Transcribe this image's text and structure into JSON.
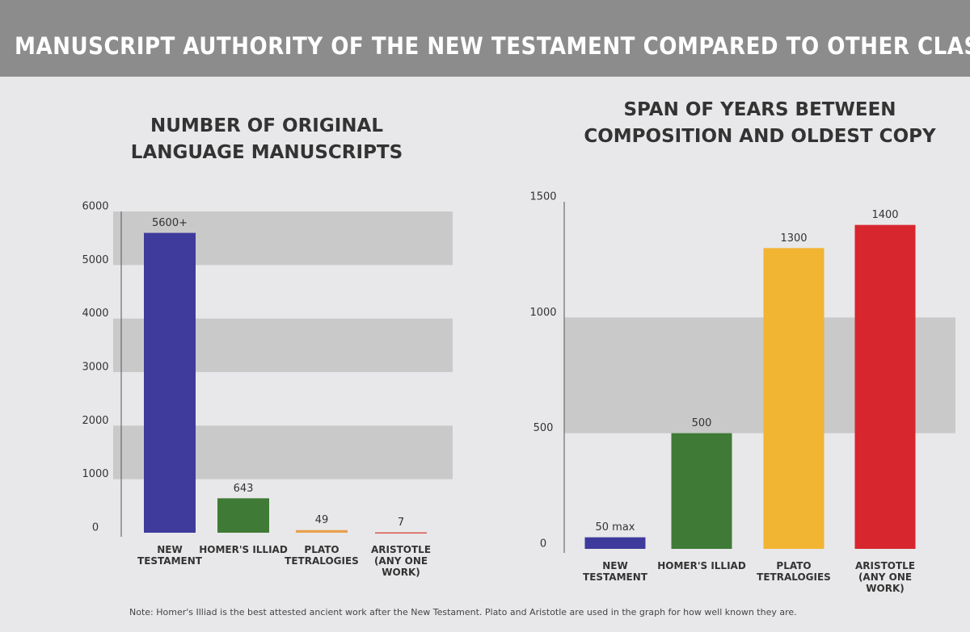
{
  "header": {
    "title": "MANUSCRIPT AUTHORITY OF THE NEW TESTAMENT COMPARED TO OTHER CLASSICAL WORK"
  },
  "chart_data": [
    {
      "type": "bar",
      "title": "NUMBER OF ORIGINAL LANGUAGE MANUSCRIPTS",
      "categories": [
        "NEW TESTAMENT",
        "HOMER'S ILLIAD",
        "PLATO TETRALOGIES",
        "ARISTOTLE (ANY ONE WORK)"
      ],
      "values": [
        5600,
        643,
        49,
        7
      ],
      "value_labels": [
        "5600+",
        "643",
        "49",
        "7"
      ],
      "colors": [
        "#3e3b9c",
        "#3f7b36",
        "#e9a04c",
        "#d9564c"
      ],
      "ylim": [
        0,
        6000
      ],
      "yticks": [
        0,
        1000,
        2000,
        3000,
        4000,
        5000,
        6000
      ],
      "grid": "bands"
    },
    {
      "type": "bar",
      "title": "SPAN OF YEARS BETWEEN COMPOSITION AND OLDEST COPY",
      "categories": [
        "NEW TESTAMENT",
        "HOMER'S ILLIAD",
        "PLATO TETRALOGIES",
        "ARISTOTLE (ANY ONE WORK)"
      ],
      "values": [
        50,
        500,
        1300,
        1400
      ],
      "value_labels": [
        "50 max",
        "500",
        "1300",
        "1400"
      ],
      "colors": [
        "#3e3b9c",
        "#3f7b36",
        "#f1b433",
        "#d8262e"
      ],
      "ylim": [
        0,
        1500
      ],
      "yticks": [
        0,
        500,
        1000,
        1500
      ],
      "grid": "bands"
    }
  ],
  "note": "Note: Homer's Illiad is the best attested ancient work after the New Testament.  Plato and Aristotle are used in the graph for how well known they are."
}
